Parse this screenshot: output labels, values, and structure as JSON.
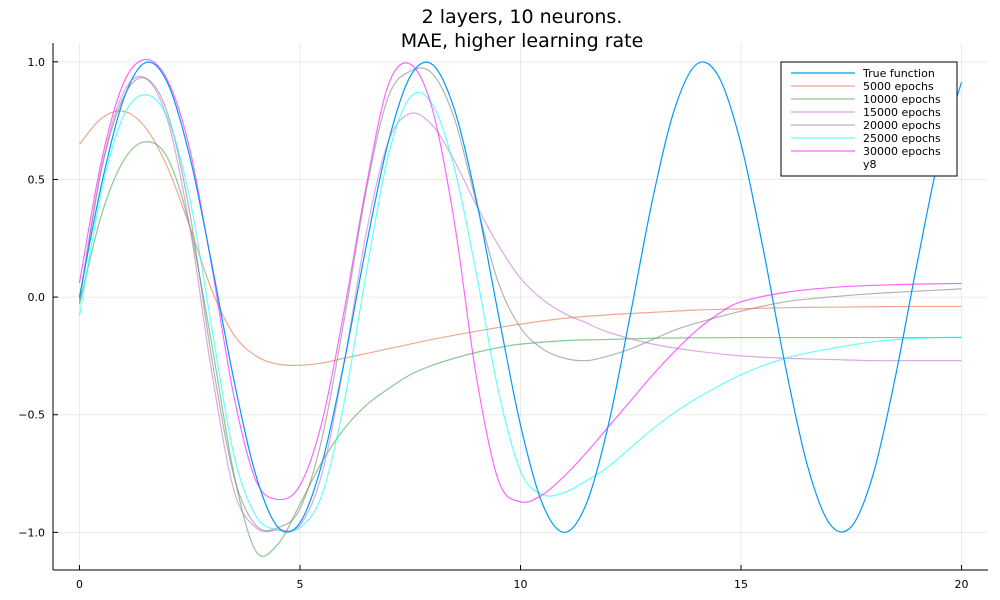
{
  "chart_data": {
    "type": "line",
    "title": "2 layers, 10 neurons.",
    "subtitle": "MAE, higher learning rate",
    "xlabel": "",
    "ylabel": "",
    "xlim": [
      -0.6,
      20.6
    ],
    "ylim": [
      -1.16,
      1.08
    ],
    "xticks": [
      0,
      5,
      10,
      15,
      20
    ],
    "xtick_labels": [
      "0",
      "5",
      "10",
      "15",
      "20"
    ],
    "yticks": [
      -1.0,
      -0.5,
      0.0,
      0.5,
      1.0
    ],
    "ytick_labels": [
      "−1.0",
      "−0.5",
      "0.0",
      "0.5",
      "1.0"
    ],
    "grid": true,
    "legend_position": "top-right",
    "series": [
      {
        "name": "True function",
        "color": "#009af9",
        "x": [
          0,
          0.5,
          1,
          1.5,
          2,
          2.5,
          3,
          3.5,
          4,
          4.5,
          5,
          5.5,
          6,
          6.5,
          7,
          7.5,
          8,
          8.5,
          9,
          9.5,
          10,
          10.5,
          11,
          11.5,
          12,
          12.5,
          13,
          13.5,
          14,
          14.5,
          15,
          15.5,
          16,
          16.5,
          17,
          17.5,
          18,
          18.5,
          19,
          19.5,
          20
        ],
        "y": [
          0,
          0.479,
          0.841,
          0.997,
          0.909,
          0.598,
          0.141,
          -0.351,
          -0.757,
          -0.978,
          -0.959,
          -0.706,
          -0.279,
          0.215,
          0.657,
          0.938,
          0.989,
          0.798,
          0.412,
          -0.075,
          -0.544,
          -0.88,
          -1.0,
          -0.875,
          -0.537,
          -0.066,
          0.42,
          0.803,
          0.991,
          0.935,
          0.65,
          0.207,
          -0.288,
          -0.712,
          -0.961,
          -0.976,
          -0.751,
          -0.339,
          0.15,
          0.605,
          0.913
        ]
      },
      {
        "name": "5000 epochs",
        "color": "#e26f46",
        "x": [
          0,
          0.5,
          1,
          1.5,
          2,
          2.5,
          3,
          3.5,
          4,
          4.5,
          5,
          5.5,
          6,
          7,
          8,
          9,
          10,
          11,
          12,
          13,
          14,
          15,
          16,
          17,
          18,
          19,
          20
        ],
        "y": [
          0.65,
          0.76,
          0.79,
          0.72,
          0.55,
          0.3,
          0.03,
          -0.16,
          -0.25,
          -0.285,
          -0.29,
          -0.28,
          -0.26,
          -0.22,
          -0.18,
          -0.145,
          -0.115,
          -0.09,
          -0.075,
          -0.065,
          -0.055,
          -0.05,
          -0.045,
          -0.043,
          -0.041,
          -0.04,
          -0.04
        ]
      },
      {
        "name": "10000 epochs",
        "color": "#3da44d",
        "x": [
          0,
          0.5,
          1,
          1.5,
          2,
          2.5,
          3,
          3.5,
          4,
          4.5,
          5,
          5.5,
          6,
          6.5,
          7,
          7.5,
          8,
          8.5,
          9,
          9.5,
          10,
          11,
          12,
          13,
          14,
          15,
          16,
          17,
          18,
          19,
          20
        ],
        "y": [
          -0.03,
          0.35,
          0.58,
          0.66,
          0.59,
          0.3,
          -0.2,
          -0.75,
          -1.08,
          -1.05,
          -0.88,
          -0.7,
          -0.56,
          -0.46,
          -0.39,
          -0.33,
          -0.29,
          -0.26,
          -0.235,
          -0.215,
          -0.2,
          -0.185,
          -0.18,
          -0.175,
          -0.173,
          -0.172,
          -0.172,
          -0.172,
          -0.172,
          -0.172,
          -0.172
        ]
      },
      {
        "name": "15000 epochs",
        "color": "#c271d2",
        "x": [
          0,
          0.5,
          1,
          1.5,
          2,
          2.5,
          3,
          3.5,
          4,
          4.5,
          5,
          5.5,
          6,
          6.5,
          7,
          7.5,
          8,
          8.5,
          9,
          9.5,
          10,
          10.5,
          11,
          11.5,
          12,
          13,
          14,
          15,
          16,
          17,
          18,
          19,
          20
        ],
        "y": [
          -0.01,
          0.55,
          0.87,
          0.93,
          0.75,
          0.3,
          -0.32,
          -0.82,
          -0.98,
          -0.99,
          -0.97,
          -0.75,
          -0.28,
          0.27,
          0.66,
          0.78,
          0.73,
          0.58,
          0.39,
          0.22,
          0.08,
          -0.01,
          -0.07,
          -0.11,
          -0.15,
          -0.2,
          -0.23,
          -0.25,
          -0.26,
          -0.265,
          -0.27,
          -0.27,
          -0.27
        ]
      },
      {
        "name": "20000 epochs",
        "color": "#808080",
        "x": [
          0,
          0.5,
          1,
          1.5,
          2,
          2.5,
          3,
          3.5,
          4,
          4.5,
          5,
          5.5,
          6,
          6.5,
          7,
          7.5,
          8,
          8.5,
          9,
          9.5,
          10,
          10.5,
          11,
          11.5,
          12,
          12.5,
          13,
          13.5,
          14,
          15,
          16,
          17,
          18,
          19,
          20
        ],
        "y": [
          -0.02,
          0.54,
          0.85,
          0.93,
          0.78,
          0.36,
          -0.26,
          -0.76,
          -0.97,
          -0.98,
          -0.9,
          -0.6,
          -0.1,
          0.45,
          0.85,
          0.96,
          0.95,
          0.76,
          0.4,
          0.06,
          -0.13,
          -0.22,
          -0.26,
          -0.27,
          -0.25,
          -0.22,
          -0.18,
          -0.14,
          -0.11,
          -0.06,
          -0.02,
          0.0,
          0.015,
          0.025,
          0.035
        ]
      },
      {
        "name": "25000 epochs",
        "color": "#00ffff",
        "x": [
          0,
          0.5,
          1,
          1.5,
          2,
          2.5,
          3,
          3.5,
          4,
          4.5,
          5,
          5.5,
          6,
          6.5,
          7,
          7.5,
          8,
          8.5,
          9,
          9.5,
          10,
          10.5,
          11,
          11.5,
          12,
          12.5,
          13,
          13.5,
          14,
          15,
          16,
          17,
          18,
          19,
          20
        ],
        "y": [
          -0.08,
          0.45,
          0.77,
          0.86,
          0.76,
          0.42,
          -0.13,
          -0.67,
          -0.93,
          -0.99,
          -0.98,
          -0.84,
          -0.45,
          0.1,
          0.6,
          0.85,
          0.82,
          0.55,
          0.1,
          -0.4,
          -0.74,
          -0.84,
          -0.83,
          -0.78,
          -0.72,
          -0.64,
          -0.56,
          -0.49,
          -0.43,
          -0.33,
          -0.26,
          -0.22,
          -0.19,
          -0.175,
          -0.17
        ]
      },
      {
        "name": "30000 epochs",
        "color": "#ff00ff",
        "x": [
          0,
          0.5,
          1,
          1.5,
          2,
          2.5,
          3,
          3.5,
          4,
          4.5,
          5,
          5.5,
          6,
          6.5,
          7,
          7.5,
          8,
          8.5,
          9,
          9.5,
          10,
          10.5,
          11,
          11.5,
          12,
          12.5,
          13,
          13.5,
          14,
          14.5,
          15,
          16,
          17,
          18,
          19,
          20
        ],
        "y": [
          0.06,
          0.58,
          0.91,
          1.01,
          0.92,
          0.63,
          0.13,
          -0.42,
          -0.78,
          -0.86,
          -0.8,
          -0.53,
          -0.06,
          0.47,
          0.9,
          0.99,
          0.8,
          0.32,
          -0.34,
          -0.78,
          -0.87,
          -0.84,
          -0.76,
          -0.66,
          -0.55,
          -0.44,
          -0.33,
          -0.23,
          -0.14,
          -0.07,
          -0.02,
          0.02,
          0.04,
          0.05,
          0.055,
          0.058
        ]
      },
      {
        "name": "y8",
        "color": "#b2b2b2",
        "x": [],
        "y": []
      }
    ]
  }
}
